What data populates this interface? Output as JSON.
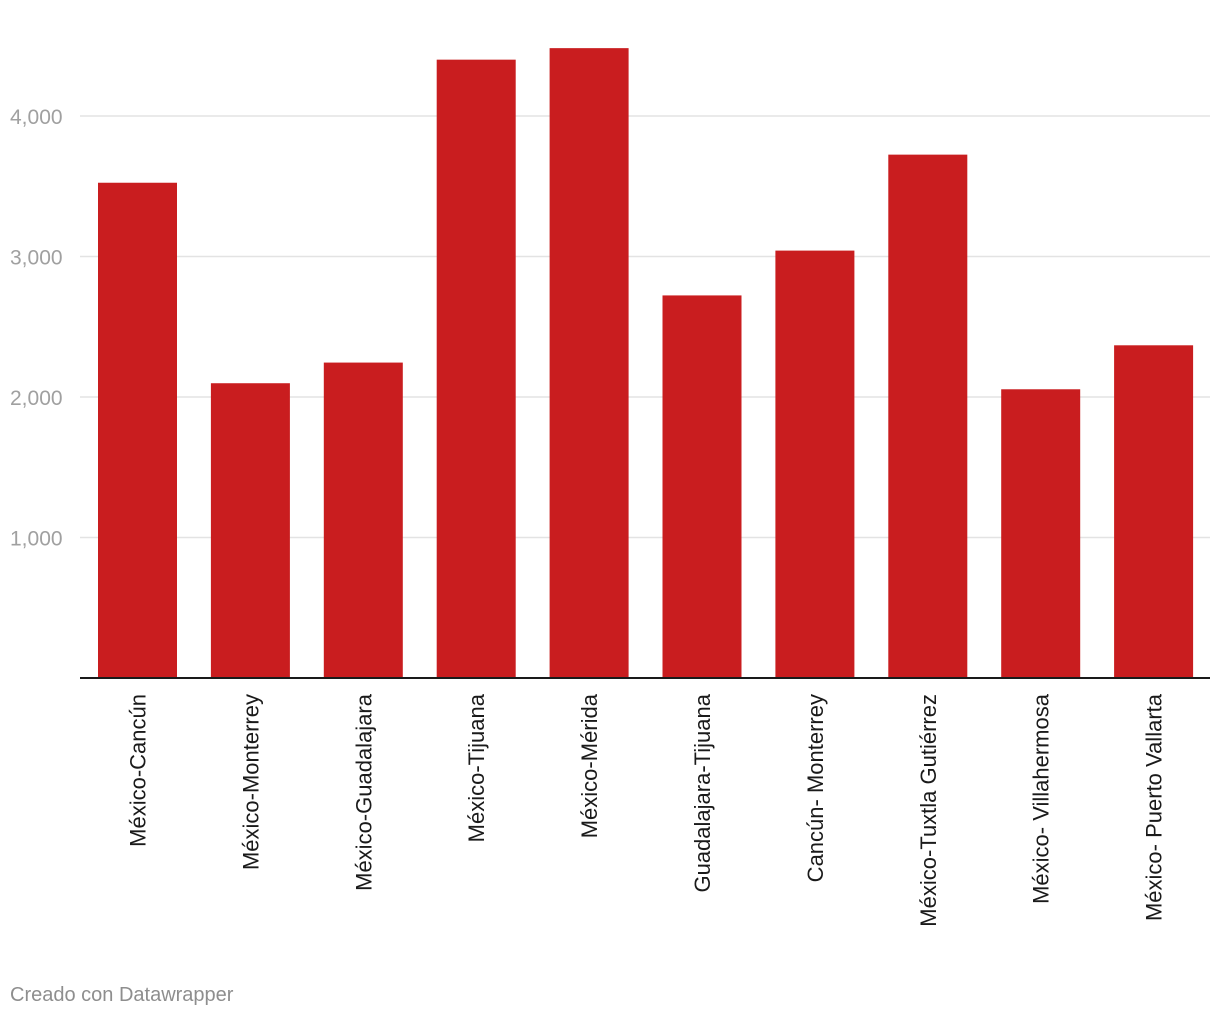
{
  "chart_data": {
    "type": "bar",
    "title": "",
    "xlabel": "",
    "ylabel": "",
    "categories": [
      "México-Cancún",
      "México-Monterrey",
      "México-Guadalajara",
      "México-Tijuana",
      "México-Mérida",
      "Guadalajara-Tijuana",
      "Cancún- Monterrey",
      "México-Tuxtla Gutiérrez",
      "México- Villahermosa",
      "México- Puerto Vallarta"
    ],
    "values": [
      3525,
      2098,
      2245,
      4401,
      4483,
      2723,
      3042,
      3725,
      2055,
      2368
    ],
    "ylim": [
      0,
      4700
    ],
    "yticks": [
      1000,
      2000,
      3000,
      4000
    ],
    "ytick_labels": [
      "1,000",
      "2,000",
      "3,000",
      "4,000"
    ],
    "grid": true,
    "bar_color": "#c91d1f"
  },
  "footer": {
    "credit": "Creado con Datawrapper"
  }
}
